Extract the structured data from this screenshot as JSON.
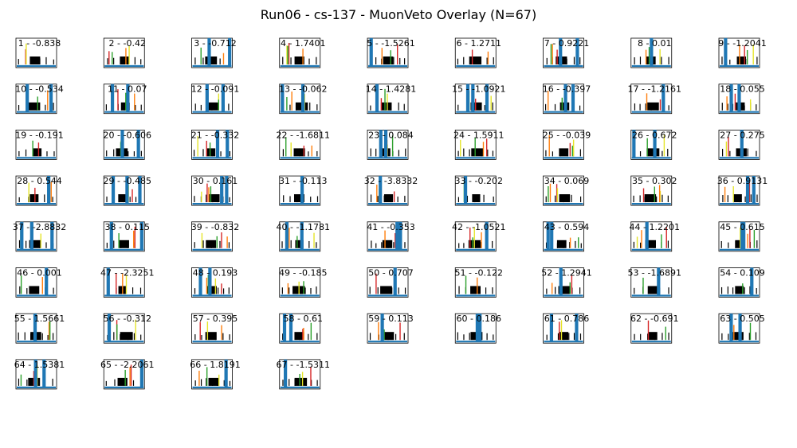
{
  "title": "Run06 - cs-137 - MuonVeto Overlay (N=67)",
  "colors": {
    "trace_primary": "#1f77b4",
    "trace_green": "#2ca02c",
    "marker_yellow": "#e5e52a",
    "marker_red": "#d62728",
    "marker_orange": "#ff7f0e",
    "ticks": "#000000"
  },
  "chart_data": {
    "type": "line",
    "layout": {
      "rows": 8,
      "cols": 9
    },
    "panels": [
      {
        "label": "1 - -0.838"
      },
      {
        "label": "2 - -0.42"
      },
      {
        "label": "3 - -0.712"
      },
      {
        "label": "4 - 1.7401"
      },
      {
        "label": "5 - -1.5261"
      },
      {
        "label": "6 - 1.2711"
      },
      {
        "label": "7 - 0.9221"
      },
      {
        "label": "8 - 0.01"
      },
      {
        "label": "9 - -1.2041"
      },
      {
        "label": "10 - -0.534"
      },
      {
        "label": "11 - 0.07"
      },
      {
        "label": "12 - -0.091"
      },
      {
        "label": "13 - -0.062"
      },
      {
        "label": "14 - 1.4281"
      },
      {
        "label": "15 - -1.0921"
      },
      {
        "label": "16 - -0.397"
      },
      {
        "label": "17 - -1.2161"
      },
      {
        "label": "18 - 0.055"
      },
      {
        "label": "19 - -0.191"
      },
      {
        "label": "20 - -0.606"
      },
      {
        "label": "21 - -0.332"
      },
      {
        "label": "22 - -1.6811"
      },
      {
        "label": "23 - 0.084"
      },
      {
        "label": "24 - 1.5911"
      },
      {
        "label": "25 - -0.039"
      },
      {
        "label": "26 - 0.672"
      },
      {
        "label": "27 - 0.275"
      },
      {
        "label": "28 - 0.544"
      },
      {
        "label": "29 - -0.485"
      },
      {
        "label": "30 - 0.161"
      },
      {
        "label": "31 - -0.113"
      },
      {
        "label": "32 - -3.8332"
      },
      {
        "label": "33 - -0.202"
      },
      {
        "label": "34 - 0.069"
      },
      {
        "label": "35 - 0.302"
      },
      {
        "label": "36 - 0.9131"
      },
      {
        "label": "37 - -2.8832"
      },
      {
        "label": "38 - 0.115"
      },
      {
        "label": "39 - -0.832"
      },
      {
        "label": "40 - -1.1781"
      },
      {
        "label": "41 - -0.353"
      },
      {
        "label": "42 - -1.0521"
      },
      {
        "label": "43 - 0.594"
      },
      {
        "label": "44 - 1.2201"
      },
      {
        "label": "45 - 0.615"
      },
      {
        "label": "46 - 0.001"
      },
      {
        "label": "47 - -2.3251"
      },
      {
        "label": "48 - 0.193"
      },
      {
        "label": "49 - -0.185"
      },
      {
        "label": "50 - 0.707"
      },
      {
        "label": "51 - -0.122"
      },
      {
        "label": "52 - 1.2941"
      },
      {
        "label": "53 - -1.6891"
      },
      {
        "label": "54 - 0.109"
      },
      {
        "label": "55 - 1.5661"
      },
      {
        "label": "56 - -0.312"
      },
      {
        "label": "57 - 0.395"
      },
      {
        "label": "58 - 0.61"
      },
      {
        "label": "59 - 0.113"
      },
      {
        "label": "60 - 0.186"
      },
      {
        "label": "61 - 0.786"
      },
      {
        "label": "62 - -0.691"
      },
      {
        "label": "63 - 0.505"
      },
      {
        "label": "64 - 1.5381"
      },
      {
        "label": "65 - -2.2061"
      },
      {
        "label": "66 - 1.8191"
      },
      {
        "label": "67 - -1.5311"
      }
    ]
  }
}
